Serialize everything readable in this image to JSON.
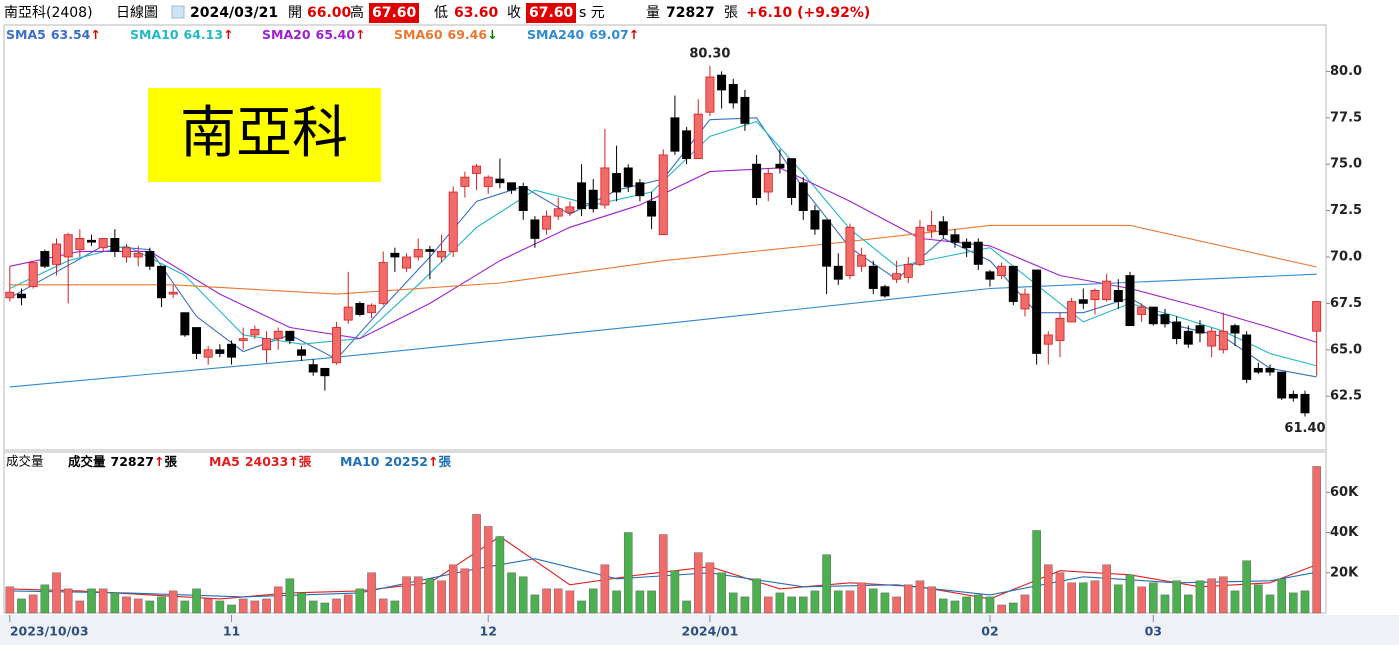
{
  "chart_data": {
    "type": "candlestick",
    "header": {
      "stock": "南亞科(2408)",
      "chart_kind": "日線圖",
      "date": "2024/03/21",
      "open_label": "開",
      "open": "66.00",
      "high_label": "高",
      "high": "67.60",
      "low_label": "低",
      "low": "63.60",
      "close_label": "收",
      "close": "67.60",
      "currency": "s 元",
      "volume_label": "量",
      "volume": "72827",
      "volume_unit": "張",
      "change": "+6.10 (+9.92%)"
    },
    "stock_label": "南亞科",
    "xlim": [
      -0.5,
      112.8
    ],
    "xticks": [
      {
        "value": 0,
        "label": "2023/10/03"
      },
      {
        "value": 19,
        "label": "11"
      },
      {
        "value": 41,
        "label": "12"
      },
      {
        "value": 60,
        "label": "2024/01"
      },
      {
        "value": 84,
        "label": "02"
      },
      {
        "value": 98,
        "label": "03"
      }
    ],
    "ylim": [
      59.6,
      82.5
    ],
    "yticks": [
      {
        "value": 62.5,
        "label": "62.5"
      },
      {
        "value": 65,
        "label": "65.0"
      },
      {
        "value": 67.5,
        "label": "67.5"
      },
      {
        "value": 70,
        "label": "70.0"
      },
      {
        "value": 72.5,
        "label": "72.5"
      },
      {
        "value": 75,
        "label": "75.0"
      },
      {
        "value": 77.5,
        "label": "77.5"
      },
      {
        "value": 80,
        "label": "80.0"
      }
    ],
    "up_color": "#f26b6b",
    "up_border": "#d42020",
    "down_color": "#000000",
    "open": [
      67.8,
      68.0,
      68.4,
      70.3,
      69.6,
      70.0,
      70.4,
      70.9,
      70.5,
      71.0,
      70.0,
      70.0,
      70.3,
      69.5,
      68.0,
      67.0,
      66.2,
      64.6,
      65.0,
      65.3,
      65.5,
      65.8,
      65.0,
      65.6,
      66.0,
      65.0,
      64.2,
      64.0,
      64.3,
      66.6,
      67.5,
      67.0,
      67.5,
      70.2,
      69.4,
      70.0,
      70.4,
      70.0,
      70.3,
      73.8,
      74.5,
      73.8,
      74.2,
      74.0,
      73.8,
      72.0,
      71.5,
      72.2,
      72.4,
      74.0,
      73.6,
      72.8,
      74.5,
      74.8,
      74.0,
      73.0,
      71.2,
      77.5,
      76.8,
      75.3,
      77.8,
      79.8,
      79.3,
      78.6,
      75.0,
      73.5,
      75.0,
      75.3,
      74.0,
      72.5,
      72.0,
      69.5,
      69.0,
      69.5,
      69.5,
      68.4,
      68.8,
      68.9,
      69.6,
      71.4,
      71.9,
      71.2,
      70.8,
      70.8,
      69.2,
      69.0,
      69.5,
      67.2,
      69.3,
      65.3,
      65.5,
      66.5,
      67.7,
      67.7,
      67.7,
      68.2,
      69.0,
      66.9,
      67.3,
      66.9,
      66.5,
      66.0,
      66.3,
      65.2,
      65.0,
      66.3,
      65.8,
      64.0,
      64.0,
      63.8,
      62.6,
      62.6,
      66.0
    ],
    "high": [
      69.5,
      68.3,
      69.7,
      70.4,
      71.0,
      71.3,
      71.5,
      71.2,
      71.0,
      71.5,
      70.7,
      70.6,
      70.5,
      69.5,
      68.5,
      67.0,
      66.2,
      65.2,
      65.3,
      65.5,
      66.2,
      66.3,
      66.0,
      66.2,
      66.0,
      65.2,
      64.5,
      64.0,
      66.5,
      69.2,
      67.6,
      67.5,
      70.3,
      70.5,
      70.2,
      71.0,
      70.6,
      71.2,
      73.8,
      74.6,
      75.0,
      74.4,
      75.3,
      74.0,
      74.0,
      72.2,
      72.5,
      73.2,
      73.0,
      75.0,
      74.2,
      76.9,
      76.0,
      75.0,
      74.2,
      73.5,
      75.8,
      78.7,
      77.0,
      78.5,
      80.3,
      80.0,
      79.6,
      79.0,
      75.5,
      74.8,
      75.8,
      75.3,
      74.3,
      72.8,
      72.0,
      70.2,
      71.8,
      70.5,
      69.8,
      68.5,
      69.8,
      70.0,
      72.0,
      72.5,
      72.2,
      71.5,
      71.0,
      71.0,
      69.3,
      69.7,
      69.5,
      68.3,
      69.3,
      66.0,
      67.0,
      67.8,
      68.3,
      68.3,
      69.1,
      68.8,
      69.2,
      67.5,
      67.3,
      67.2,
      66.8,
      66.3,
      66.6,
      66.2,
      67.0,
      66.4,
      66.0,
      64.3,
      64.2,
      63.8,
      62.8,
      62.8,
      67.6
    ],
    "low": [
      67.6,
      67.4,
      68.3,
      69.4,
      69.0,
      67.5,
      70.0,
      70.6,
      70.3,
      70.0,
      69.7,
      69.5,
      69.3,
      67.3,
      67.8,
      65.7,
      64.5,
      64.2,
      64.6,
      64.2,
      65.0,
      65.6,
      64.3,
      65.0,
      65.3,
      64.4,
      63.6,
      62.8,
      64.2,
      66.4,
      66.8,
      66.7,
      67.4,
      69.2,
      69.2,
      69.8,
      68.8,
      69.7,
      70.0,
      73.2,
      73.6,
      73.4,
      73.7,
      73.4,
      72.0,
      70.5,
      71.2,
      72.0,
      72.2,
      72.2,
      72.4,
      72.6,
      73.0,
      73.5,
      73.0,
      71.5,
      71.2,
      75.5,
      75.0,
      75.3,
      77.6,
      78.0,
      78.0,
      76.8,
      72.8,
      73.0,
      74.5,
      72.8,
      72.0,
      71.2,
      68.0,
      68.5,
      68.8,
      69.2,
      68.0,
      67.8,
      68.6,
      68.6,
      69.5,
      71.0,
      71.0,
      70.5,
      70.0,
      69.3,
      68.4,
      68.8,
      67.4,
      66.8,
      64.2,
      64.2,
      64.6,
      66.5,
      67.2,
      66.9,
      67.6,
      67.2,
      66.3,
      66.5,
      66.3,
      66.2,
      65.3,
      65.1,
      65.4,
      64.6,
      64.8,
      65.2,
      63.2,
      63.7,
      63.6,
      62.3,
      62.2,
      61.4,
      63.6
    ],
    "close": [
      68.1,
      67.8,
      69.7,
      69.5,
      70.7,
      71.2,
      71.0,
      70.8,
      71.0,
      70.3,
      70.5,
      70.2,
      69.5,
      67.8,
      68.1,
      65.8,
      64.8,
      65.0,
      64.8,
      64.6,
      65.6,
      66.1,
      65.6,
      66.0,
      65.5,
      64.7,
      63.8,
      63.6,
      66.2,
      67.3,
      66.9,
      67.4,
      69.7,
      70.0,
      70.0,
      70.4,
      70.3,
      70.3,
      73.5,
      74.3,
      74.9,
      74.3,
      74.0,
      73.6,
      72.5,
      71.0,
      72.2,
      72.6,
      72.7,
      72.6,
      72.6,
      74.8,
      73.5,
      73.8,
      73.3,
      72.2,
      75.5,
      75.7,
      75.3,
      77.7,
      79.7,
      79.0,
      78.3,
      77.2,
      73.2,
      74.5,
      74.8,
      73.2,
      72.5,
      71.5,
      69.5,
      68.8,
      71.6,
      70.1,
      68.3,
      67.9,
      69.1,
      69.6,
      71.6,
      71.7,
      71.2,
      70.8,
      70.5,
      69.6,
      68.8,
      69.5,
      67.6,
      68.0,
      64.8,
      65.8,
      66.7,
      67.6,
      67.5,
      68.2,
      68.7,
      67.6,
      66.3,
      67.3,
      66.4,
      66.4,
      65.6,
      65.3,
      65.9,
      66.0,
      66.0,
      65.9,
      63.4,
      63.8,
      63.8,
      62.4,
      62.4,
      61.6,
      67.6
    ],
    "annotations": [
      {
        "x": 60,
        "value": 80.3,
        "label": "80.30"
      },
      {
        "x": 111,
        "value": 61.4,
        "label": "61.40"
      }
    ],
    "series": [
      {
        "name": "SMA5",
        "color": "#3a6fc4",
        "value_label": "63.54",
        "trend": "↑",
        "trend_color": "#e00000",
        "x": [
          0,
          4,
          8,
          12,
          16,
          20,
          24,
          28,
          32,
          36,
          40,
          44,
          48,
          52,
          56,
          60,
          64,
          68,
          72,
          76,
          80,
          84,
          88,
          92,
          96,
          100,
          104,
          108,
          112
        ],
        "values": [
          67.8,
          69.2,
          70.6,
          70.4,
          66.8,
          64.9,
          65.8,
          64.5,
          67.3,
          70.0,
          73.0,
          73.8,
          72.3,
          73.6,
          74.2,
          77.4,
          77.5,
          73.7,
          70.5,
          68.8,
          71.0,
          69.8,
          67.0,
          67.0,
          67.8,
          66.3,
          65.7,
          64.0,
          63.54
        ]
      },
      {
        "name": "SMA10",
        "color": "#22b8c8",
        "value_label": "64.13",
        "trend": "↑",
        "trend_color": "#e00000",
        "x": [
          0,
          5,
          10,
          15,
          20,
          25,
          30,
          35,
          40,
          45,
          50,
          55,
          60,
          64,
          68,
          72,
          76,
          80,
          84,
          88,
          92,
          96,
          100,
          104,
          108,
          112
        ],
        "values": [
          68.3,
          69.8,
          70.6,
          69.0,
          65.8,
          65.3,
          65.6,
          68.5,
          71.6,
          73.6,
          72.8,
          73.5,
          76.5,
          77.3,
          74.5,
          71.5,
          69.5,
          70.0,
          70.5,
          68.5,
          66.5,
          67.5,
          66.8,
          66.0,
          64.8,
          64.13
        ]
      },
      {
        "name": "SMA20",
        "color": "#a020d0",
        "value_label": "65.40",
        "trend": "↑",
        "trend_color": "#e00000",
        "x": [
          0,
          6,
          12,
          18,
          24,
          30,
          36,
          42,
          48,
          54,
          60,
          66,
          72,
          78,
          84,
          90,
          96,
          102,
          108,
          112
        ],
        "values": [
          69.5,
          70.3,
          70.3,
          68.0,
          66.2,
          65.6,
          67.5,
          69.8,
          71.6,
          72.8,
          74.6,
          74.8,
          73.0,
          71.0,
          70.6,
          69.0,
          68.3,
          67.3,
          66.2,
          65.4
        ]
      },
      {
        "name": "SMA60",
        "color": "#e87830",
        "value_label": "69.46",
        "trend": "↓",
        "trend_color": "#008000",
        "x": [
          0,
          14,
          28,
          42,
          56,
          70,
          84,
          96,
          112
        ],
        "values": [
          68.5,
          68.5,
          68.0,
          68.6,
          69.8,
          70.7,
          71.7,
          71.7,
          69.46
        ]
      },
      {
        "name": "SMA240",
        "color": "#2f8ad0",
        "value_label": "69.07",
        "trend": "↑",
        "trend_color": "#e00000",
        "x": [
          0,
          28,
          56,
          84,
          112
        ],
        "values": [
          63.0,
          64.6,
          66.4,
          68.3,
          69.07
        ]
      }
    ],
    "volume": {
      "type": "bar",
      "title": "成交量",
      "name": "成交量",
      "value_label": "72827",
      "trend": "↑",
      "trend_color": "#e00000",
      "unit": "張",
      "label_color": "#000000",
      "up_color": "#f26b6b",
      "down_color": "#4caf50",
      "ylim": [
        0,
        80000
      ],
      "yticks": [
        {
          "value": 20000,
          "label": "20K"
        },
        {
          "value": 40000,
          "label": "40K"
        },
        {
          "value": 60000,
          "label": "60K"
        }
      ],
      "values": [
        13000,
        7000,
        9000,
        14000,
        20000,
        12000,
        6000,
        12000,
        12000,
        10000,
        8000,
        7000,
        6000,
        8000,
        11000,
        6000,
        12000,
        7000,
        6000,
        4000,
        7000,
        6000,
        7000,
        13000,
        17000,
        10000,
        6000,
        5000,
        7000,
        9000,
        12000,
        20000,
        7000,
        6000,
        18000,
        18000,
        17000,
        16000,
        24000,
        22000,
        49000,
        43000,
        38000,
        20000,
        18000,
        9000,
        12000,
        12000,
        11000,
        6000,
        12000,
        24000,
        11000,
        40000,
        11000,
        11000,
        39000,
        21000,
        6000,
        30000,
        25000,
        20000,
        10000,
        8000,
        17000,
        8000,
        10000,
        8000,
        8000,
        11000,
        29000,
        11000,
        11000,
        15000,
        12000,
        10000,
        8000,
        14000,
        16000,
        13000,
        7000,
        6000,
        8000,
        9000,
        8000,
        4000,
        5000,
        9000,
        41000,
        24000,
        20000,
        15000,
        15000,
        16000,
        24000,
        14000,
        19000,
        13000,
        15000,
        9000,
        16000,
        9000,
        16000,
        17000,
        18000,
        11000,
        26000,
        14000,
        9000,
        17000,
        10000,
        11000,
        72827
      ],
      "series": [
        {
          "name": "MA5",
          "color": "#e02020",
          "value_label": "24033",
          "trend": "↑",
          "trend_color": "#e00000",
          "x": [
            0,
            6,
            12,
            18,
            24,
            30,
            36,
            42,
            48,
            54,
            60,
            66,
            72,
            78,
            84,
            90,
            96,
            102,
            108,
            112
          ],
          "values": [
            12000,
            11000,
            9000,
            7000,
            10000,
            11000,
            15000,
            38000,
            14000,
            19000,
            23000,
            12000,
            15000,
            13000,
            7000,
            21000,
            19000,
            13000,
            15000,
            24033
          ]
        },
        {
          "name": "MA10",
          "color": "#2070b8",
          "value_label": "20252",
          "trend": "↑",
          "trend_color": "#e00000",
          "x": [
            0,
            10,
            20,
            30,
            40,
            45,
            52,
            60,
            68,
            76,
            84,
            92,
            100,
            108,
            112
          ],
          "values": [
            11000,
            10000,
            8000,
            10000,
            22000,
            27000,
            17000,
            20000,
            13000,
            14000,
            9000,
            18000,
            15000,
            16000,
            20252
          ]
        }
      ]
    }
  }
}
